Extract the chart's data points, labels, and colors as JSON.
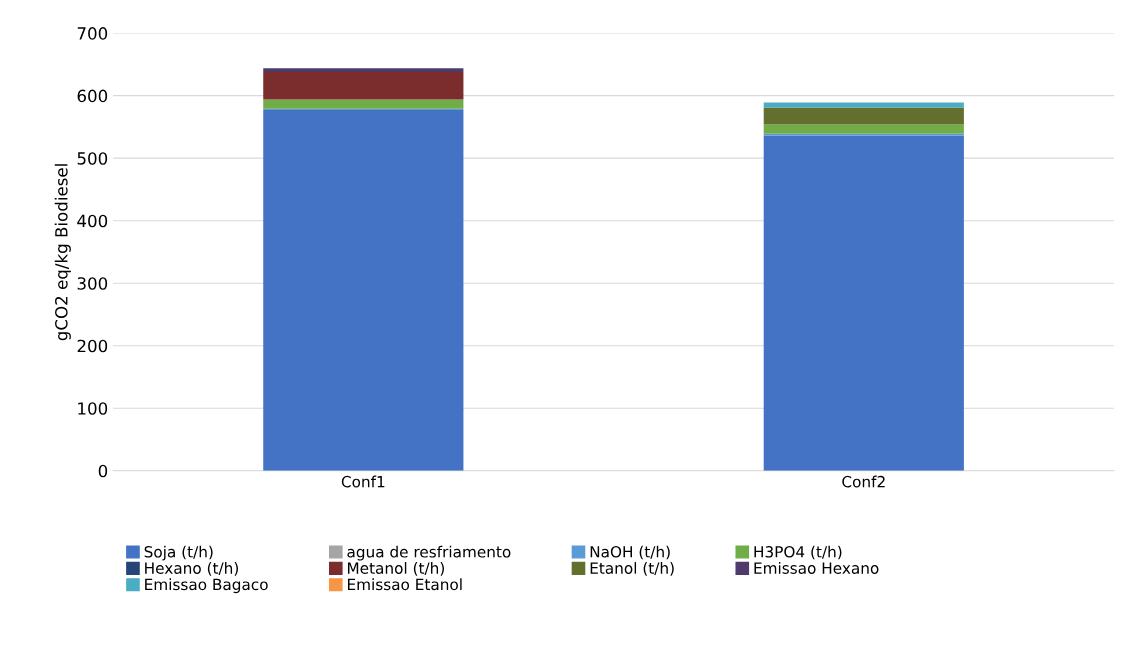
{
  "chart_data": {
    "type": "bar",
    "stacked": true,
    "ylabel": "gCO2 eq/kg Biodiesel",
    "categories": [
      "Conf1",
      "Conf2"
    ],
    "ylim": [
      0,
      700
    ],
    "yticks": [
      0,
      100,
      200,
      300,
      400,
      500,
      600,
      700
    ],
    "grid": "y",
    "legend": "bottom",
    "series": [
      {
        "name": "Soja (t/h)",
        "color": "#4472c4",
        "values": [
          577,
          536
        ]
      },
      {
        "name": "agua de resfriamento",
        "color": "#a5a5a5",
        "values": [
          0,
          0
        ]
      },
      {
        "name": "NaOH (t/h)",
        "color": "#5b9bd5",
        "values": [
          2,
          3
        ]
      },
      {
        "name": "H3PO4 (t/h)",
        "color": "#70ad47",
        "values": [
          15,
          15
        ]
      },
      {
        "name": "Hexano (t/h)",
        "color": "#264478",
        "values": [
          0,
          0
        ]
      },
      {
        "name": "Metanol (t/h)",
        "color": "#7b2c2c",
        "values": [
          44,
          0
        ]
      },
      {
        "name": "Etanol (t/h)",
        "color": "#636f2e",
        "values": [
          0,
          27
        ]
      },
      {
        "name": "Emissao Hexano",
        "color": "#4f3b6b",
        "values": [
          6,
          0
        ]
      },
      {
        "name": "Emissao Bagaco",
        "color": "#4bacc6",
        "values": [
          0,
          8
        ]
      },
      {
        "name": "Emissao Etanol",
        "color": "#f79646",
        "values": [
          0,
          0
        ]
      }
    ]
  }
}
